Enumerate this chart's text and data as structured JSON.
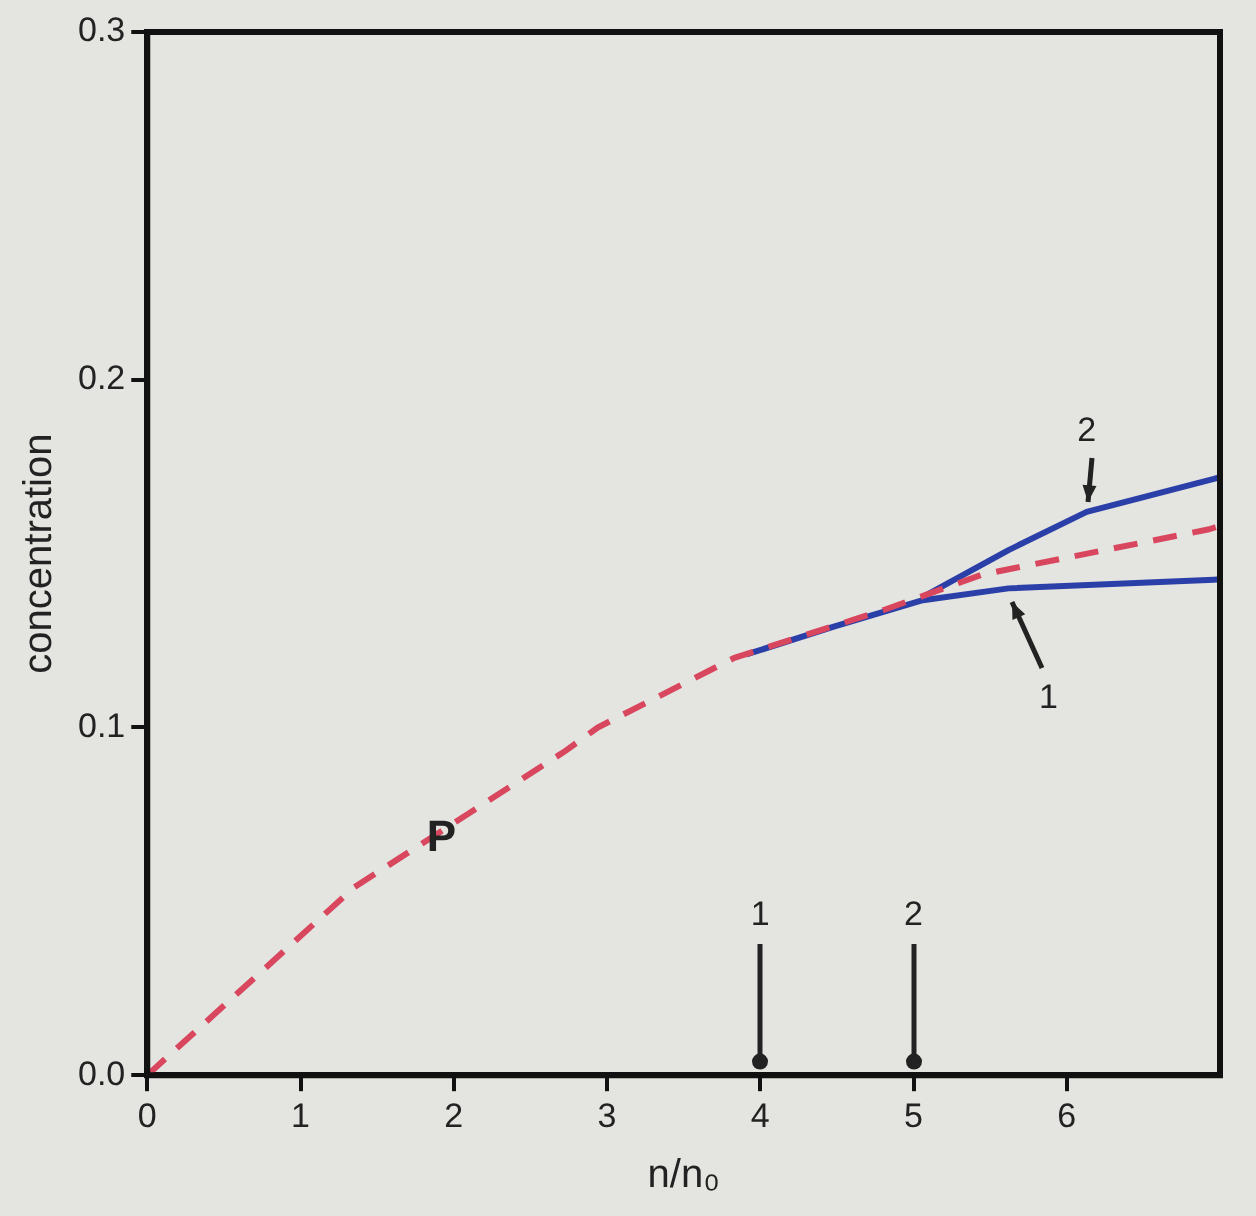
{
  "chart_data": {
    "type": "line",
    "xlabel": "n/n₀",
    "ylabel": "concentration",
    "xlim": [
      0,
      7
    ],
    "xticks": [
      0,
      1,
      2,
      3,
      4,
      5,
      6
    ],
    "ylim": [
      0,
      0.3
    ],
    "yticks": [
      {
        "value": 0,
        "label": "0.0"
      },
      0.1,
      0.2,
      0.3
    ],
    "grid": false,
    "legend": false,
    "marker": "none",
    "series": [
      {
        "color": "#d9475f",
        "line_style": "dashed",
        "x": [
          0,
          1.35,
          2.72,
          2.94,
          3.83,
          4.82,
          5.45,
          6.93,
          7
        ],
        "values": [
          0,
          0.054,
          0.093,
          0.1,
          0.12,
          0.134,
          0.144,
          0.157,
          0.158
        ]
      },
      {
        "color": "#2b3fa8",
        "line_style": "solid",
        "x": [
          3.91,
          4.48,
          5.05,
          5.62,
          6.96,
          7
        ],
        "values": [
          0.121,
          0.129,
          0.1365,
          0.14,
          0.1425,
          0.1426
        ]
      },
      {
        "color": "#2b3fa8",
        "line_style": "solid",
        "x": [
          5.08,
          5.62,
          6.13,
          6.96,
          7
        ],
        "values": [
          0.138,
          0.151,
          0.162,
          0.1715,
          0.172
        ]
      }
    ],
    "annotations": [
      {
        "text": "P",
        "x": 1.92,
        "y": 0.068
      },
      {
        "text": "1",
        "x": 5.62,
        "y": 0.14
      },
      {
        "text": "2",
        "x": 6.13,
        "y": 0.162
      },
      "1",
      "2"
    ]
  }
}
